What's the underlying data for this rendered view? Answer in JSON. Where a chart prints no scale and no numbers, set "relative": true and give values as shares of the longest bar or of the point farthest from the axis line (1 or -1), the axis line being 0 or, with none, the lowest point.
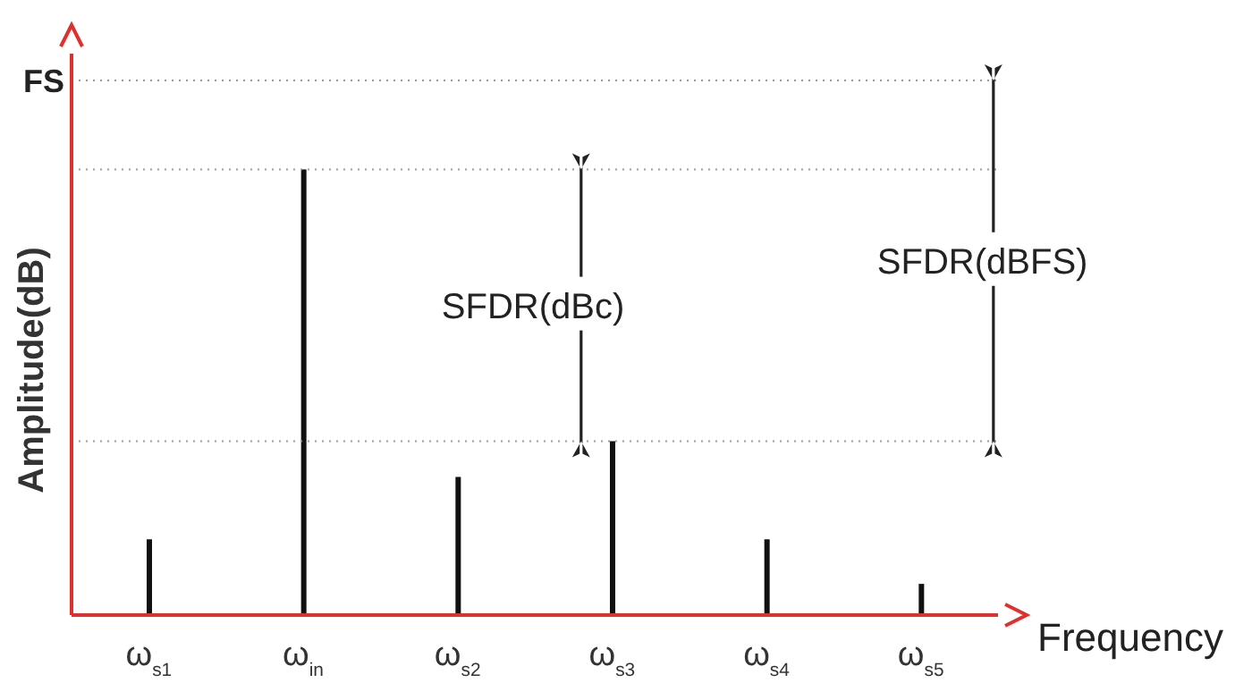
{
  "chart_data": {
    "type": "bar",
    "relative": true,
    "categories": [
      "ω$_{s1}$",
      "ω$_{in}$",
      "ω$_{s2}$",
      "ω$_{s3}$",
      "ω$_{s4}$",
      "ω$_{s5}$"
    ],
    "values": [
      0.17,
      1,
      0.31,
      0.39,
      0.17,
      0.07
    ],
    "color": "#111111",
    "xlabel": "Frequency",
    "ylabel": "Amplitude(dB)",
    "ref_lines": [
      {
        "axis": "y",
        "value": 1.2,
        "label": "FS",
        "color": "#999999",
        "line_style": "dotted"
      },
      {
        "axis": "y",
        "value": 1,
        "label": null,
        "color": "#999999",
        "line_style": "dotted"
      },
      {
        "axis": "y",
        "value": 0.39,
        "label": null,
        "color": "#999999",
        "line_style": "dotted"
      }
    ],
    "annotations": [
      "SFDR(dBc)",
      "SFDR(dBFS)"
    ],
    "grid": false,
    "legend": false
  }
}
